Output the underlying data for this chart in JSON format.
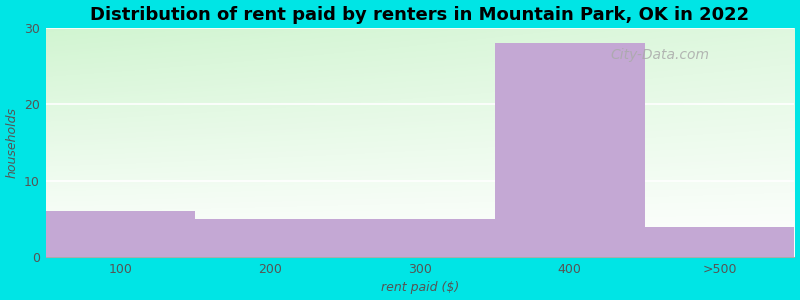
{
  "categories": [
    "100",
    "200",
    "300",
    "400",
    ">500"
  ],
  "values": [
    6,
    5,
    5,
    28,
    4
  ],
  "bar_color": "#c4a8d4",
  "bar_edge_color": "#c4a8d4",
  "title": "Distribution of rent paid by renters in Mountain Park, OK in 2022",
  "xlabel": "rent paid ($)",
  "ylabel": "households",
  "ylim": [
    0,
    30
  ],
  "yticks": [
    0,
    10,
    20,
    30
  ],
  "background_color": "#00e5e5",
  "title_fontsize": 13,
  "label_fontsize": 9,
  "tick_fontsize": 9,
  "grid_color": "#ffffff",
  "grid_linewidth": 1.2,
  "bar_width": 1.0
}
